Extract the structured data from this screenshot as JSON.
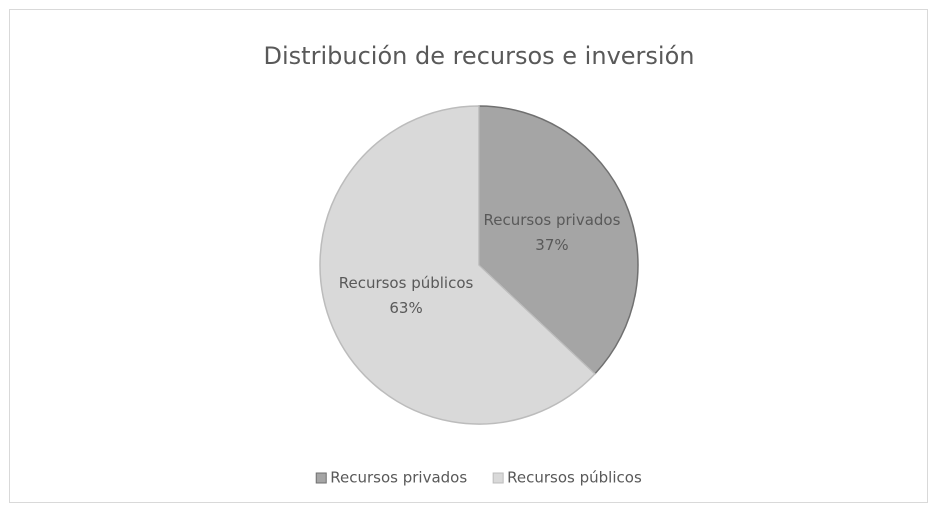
{
  "chart_data": {
    "type": "pie",
    "title": "Distribución  de recursos e inversión",
    "categories": [
      "Recursos privados",
      "Recursos públicos"
    ],
    "values": [
      37,
      63
    ],
    "value_labels": [
      "37%",
      "63%"
    ],
    "colors": [
      "#a5a5a5",
      "#d9d9d9"
    ],
    "stroke_colors": [
      "#707070",
      "#bcbcbc"
    ],
    "legend": "bottom"
  }
}
